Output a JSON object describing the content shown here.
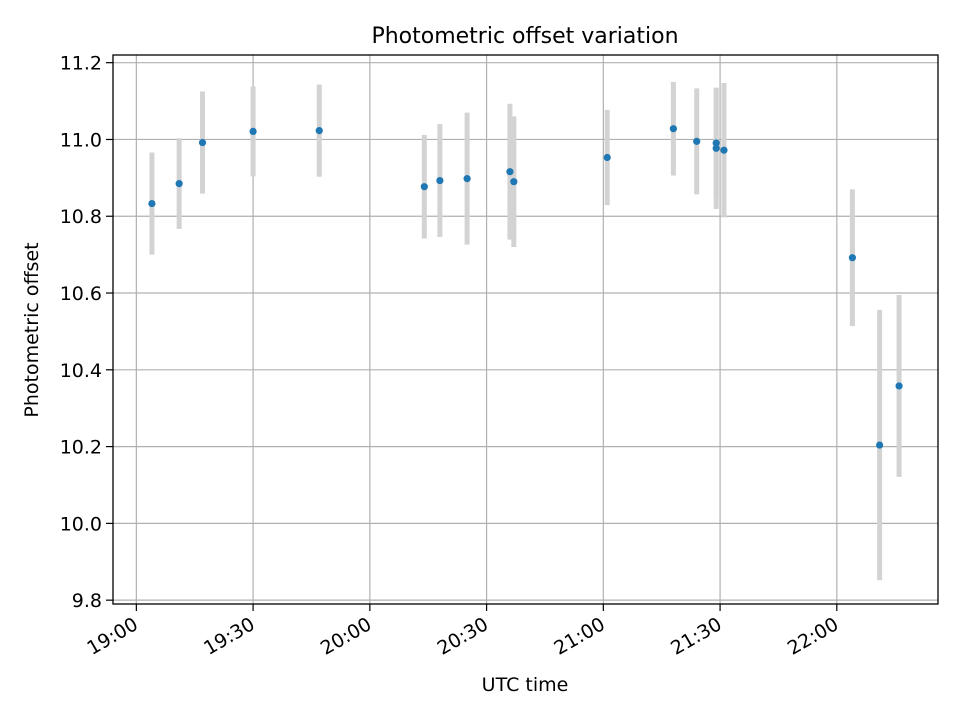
{
  "chart_data": {
    "type": "scatter",
    "title": "Photometric offset variation",
    "xlabel": "UTC time",
    "ylabel": "Photometric offset",
    "xlim": [
      "18:54",
      "22:26"
    ],
    "ylim": [
      9.79,
      11.22
    ],
    "xticks": [
      "19:00",
      "19:30",
      "20:00",
      "20:30",
      "21:00",
      "21:30",
      "22:00"
    ],
    "yticks": [
      9.8,
      10.0,
      10.2,
      10.4,
      10.6,
      10.8,
      11.0,
      11.2
    ],
    "grid": true,
    "marker_color": "#1f77b4",
    "errorbar_color": "#d3d3d3",
    "points": [
      {
        "x": "19:04",
        "y": 10.833,
        "yerr": 0.133
      },
      {
        "x": "19:11",
        "y": 10.885,
        "yerr": 0.118
      },
      {
        "x": "19:17",
        "y": 10.992,
        "yerr": 0.133
      },
      {
        "x": "19:30",
        "y": 11.021,
        "yerr": 0.117
      },
      {
        "x": "19:47",
        "y": 11.023,
        "yerr": 0.12
      },
      {
        "x": "20:14",
        "y": 10.877,
        "yerr": 0.135
      },
      {
        "x": "20:18",
        "y": 10.893,
        "yerr": 0.147
      },
      {
        "x": "20:25",
        "y": 10.898,
        "yerr": 0.172
      },
      {
        "x": "20:36",
        "y": 10.916,
        "yerr": 0.177
      },
      {
        "x": "20:37",
        "y": 10.89,
        "yerr": 0.17
      },
      {
        "x": "21:01",
        "y": 10.953,
        "yerr": 0.124
      },
      {
        "x": "21:18",
        "y": 11.028,
        "yerr": 0.122
      },
      {
        "x": "21:24",
        "y": 10.995,
        "yerr": 0.138
      },
      {
        "x": "21:29",
        "y": 10.991,
        "yerr": 0.143
      },
      {
        "x": "21:29",
        "y": 10.977,
        "yerr": 0.158
      },
      {
        "x": "21:31",
        "y": 10.972,
        "yerr": 0.175
      },
      {
        "x": "22:04",
        "y": 10.692,
        "yerr": 0.178
      },
      {
        "x": "22:11",
        "y": 10.204,
        "yerr": 0.352
      },
      {
        "x": "22:16",
        "y": 10.358,
        "yerr": 0.237
      }
    ]
  }
}
